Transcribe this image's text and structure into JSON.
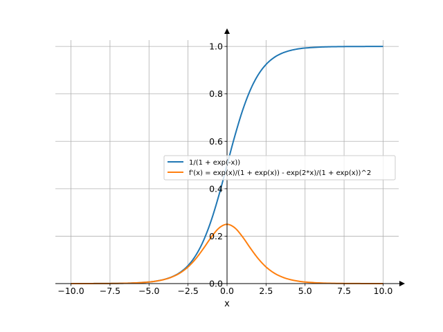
{
  "chart_data": {
    "type": "line",
    "xlabel": "x",
    "ylabel": "",
    "xlim": [
      -11,
      11
    ],
    "ylim": [
      0,
      1.05
    ],
    "grid": true,
    "legend_position": "center-right",
    "x_ticks": [
      -10,
      -7.5,
      -5,
      -2.5,
      0,
      2.5,
      5,
      7.5,
      10
    ],
    "x_tick_labels": [
      "−10.0",
      "−7.5",
      "−5.0",
      "−2.5",
      "0.0",
      "2.5",
      "5.0",
      "7.5",
      "10.0"
    ],
    "y_ticks": [
      0,
      0.2,
      0.4,
      0.6,
      0.8,
      1.0
    ],
    "y_tick_labels": [
      "0.0",
      "0.2",
      "0.4",
      "0.6",
      "0.8",
      "1.0"
    ],
    "series": [
      {
        "name": "1/(1 + exp(-x))",
        "color": "#1f77b4",
        "x": [
          -10,
          -9,
          -8,
          -7,
          -6,
          -5,
          -4.5,
          -4,
          -3.5,
          -3,
          -2.5,
          -2,
          -1.5,
          -1,
          -0.5,
          0,
          0.5,
          1,
          1.5,
          2,
          2.5,
          3,
          3.5,
          4,
          4.5,
          5,
          6,
          7,
          8,
          9,
          10
        ],
        "y": [
          4.54e-05,
          0.000123,
          0.000335,
          0.000911,
          0.00247,
          0.00669,
          0.011,
          0.018,
          0.0293,
          0.0474,
          0.0759,
          0.1192,
          0.1824,
          0.2689,
          0.3775,
          0.5,
          0.6225,
          0.7311,
          0.8176,
          0.8808,
          0.9241,
          0.9526,
          0.9707,
          0.982,
          0.989,
          0.9933,
          0.9975,
          0.9991,
          0.9997,
          0.9999,
          1.0
        ]
      },
      {
        "name": "f'(x) = exp(x)/(1 + exp(x)) - exp(2*x)/(1 + exp(x))^2",
        "color": "#ff7f0e",
        "x": [
          -10,
          -9,
          -8,
          -7,
          -6,
          -5,
          -4.5,
          -4,
          -3.5,
          -3,
          -2.5,
          -2,
          -1.5,
          -1,
          -0.5,
          0,
          0.5,
          1,
          1.5,
          2,
          2.5,
          3,
          3.5,
          4,
          4.5,
          5,
          6,
          7,
          8,
          9,
          10
        ],
        "y": [
          4.54e-05,
          0.000123,
          0.000335,
          0.00091,
          0.00247,
          0.00665,
          0.0109,
          0.0177,
          0.0285,
          0.0452,
          0.0701,
          0.105,
          0.1491,
          0.1966,
          0.235,
          0.25,
          0.235,
          0.1966,
          0.1491,
          0.105,
          0.0701,
          0.0452,
          0.0285,
          0.0177,
          0.0109,
          0.00665,
          0.00247,
          0.00091,
          0.000335,
          0.000123,
          4.54e-05
        ]
      }
    ]
  }
}
